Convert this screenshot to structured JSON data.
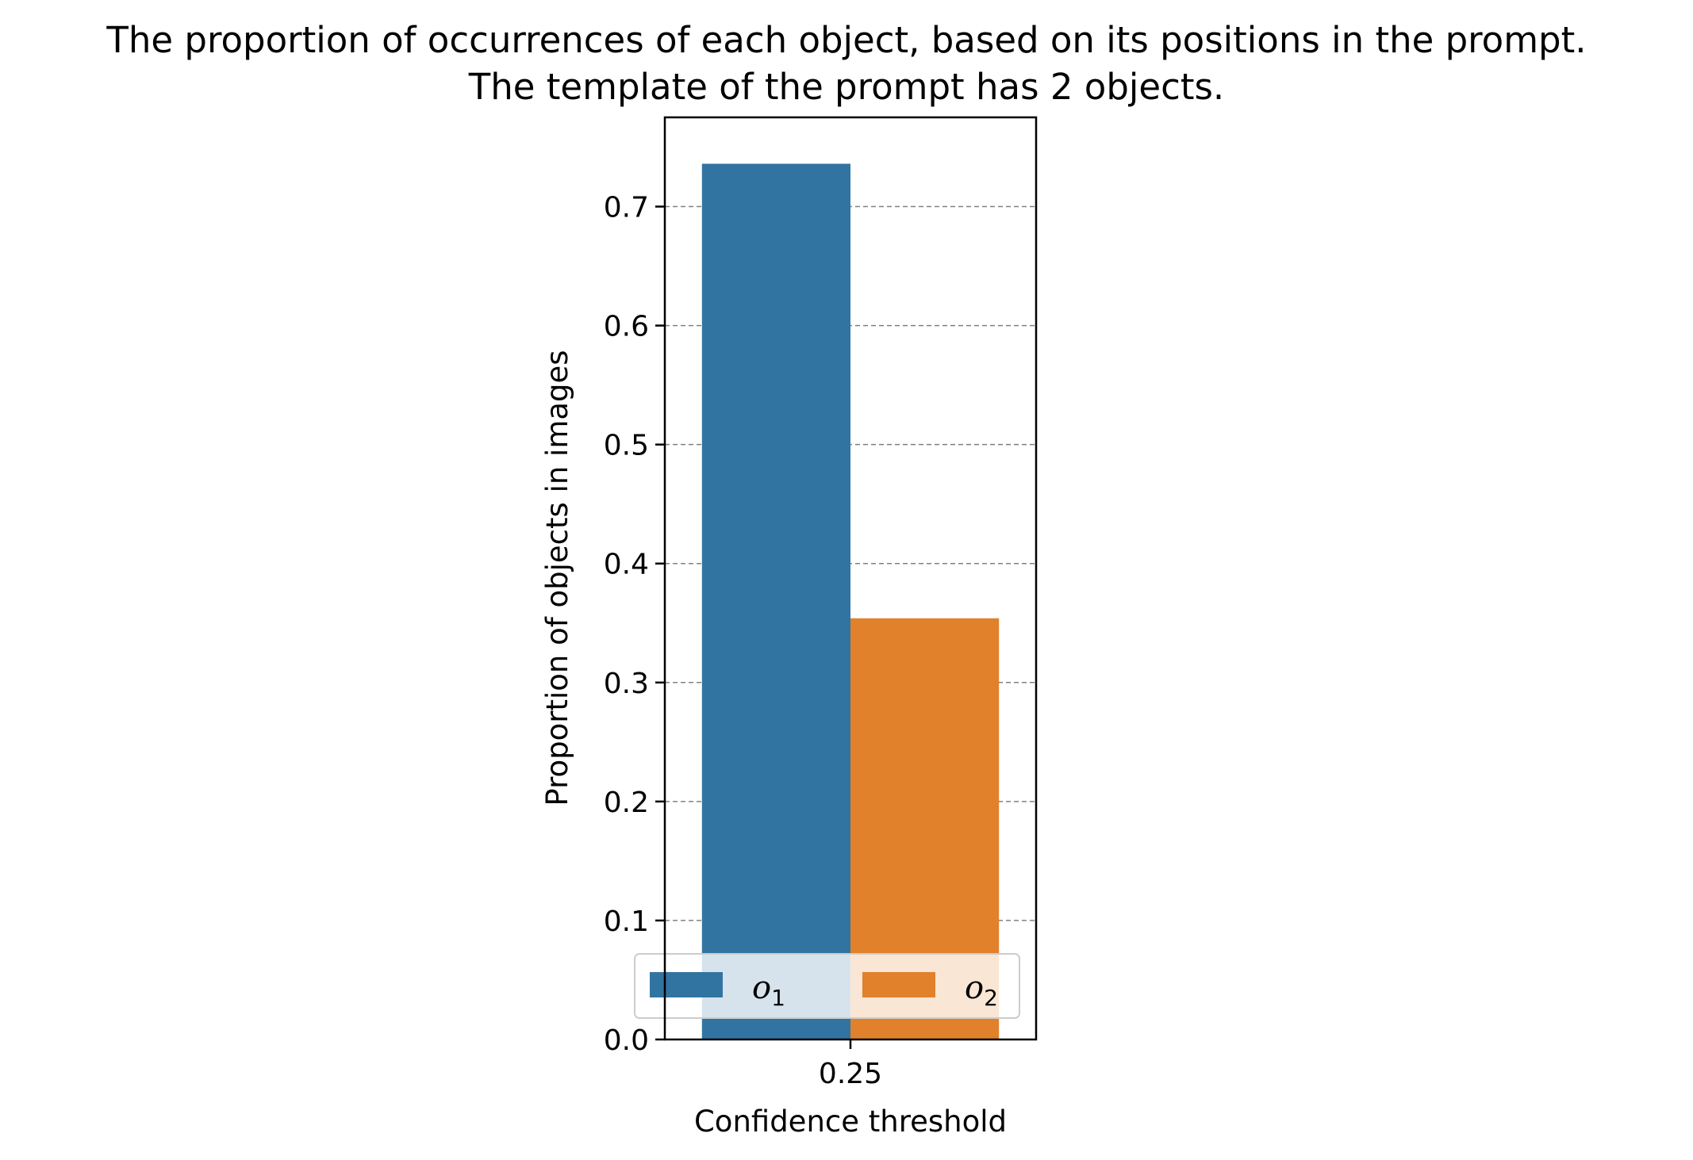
{
  "chart_data": {
    "type": "bar",
    "title": "The proportion of occurrences of each object, based on its positions in the prompt.",
    "subtitle": "The template of the prompt has 2 objects.",
    "xlabel": "Confidence threshold",
    "ylabel": "Proportion of objects in images",
    "categories": [
      "0.25"
    ],
    "series": [
      {
        "name": "o",
        "name_sub": "1",
        "values": [
          0.736
        ],
        "color": "#3274a1"
      },
      {
        "name": "o",
        "name_sub": "2",
        "values": [
          0.354
        ],
        "color": "#e1812c"
      }
    ],
    "ylim": [
      0,
      0.775
    ],
    "yticks": [
      0.0,
      0.1,
      0.2,
      0.3,
      0.4,
      0.5,
      0.6,
      0.7
    ],
    "ytick_labels": [
      "0.0",
      "0.1",
      "0.2",
      "0.3",
      "0.4",
      "0.5",
      "0.6",
      "0.7"
    ],
    "grid": "y-dashed",
    "legend_position": "lower center"
  }
}
